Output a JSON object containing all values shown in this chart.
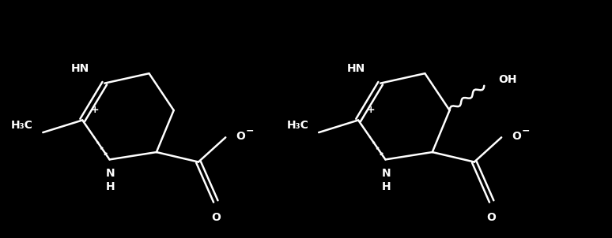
{
  "background_color": "#000000",
  "line_color": "#ffffff",
  "text_color": "#ffffff",
  "figsize": [
    7.74,
    3.02
  ],
  "dpi": 100,
  "lw": 1.8,
  "fs": 10,
  "ectoine_ox": 0.55,
  "ectoine_oy": 0.2,
  "hydroxy_ox": 5.3,
  "hydroxy_oy": 0.2,
  "xlim": [
    0,
    10.5
  ],
  "ylim": [
    0,
    3.5
  ]
}
